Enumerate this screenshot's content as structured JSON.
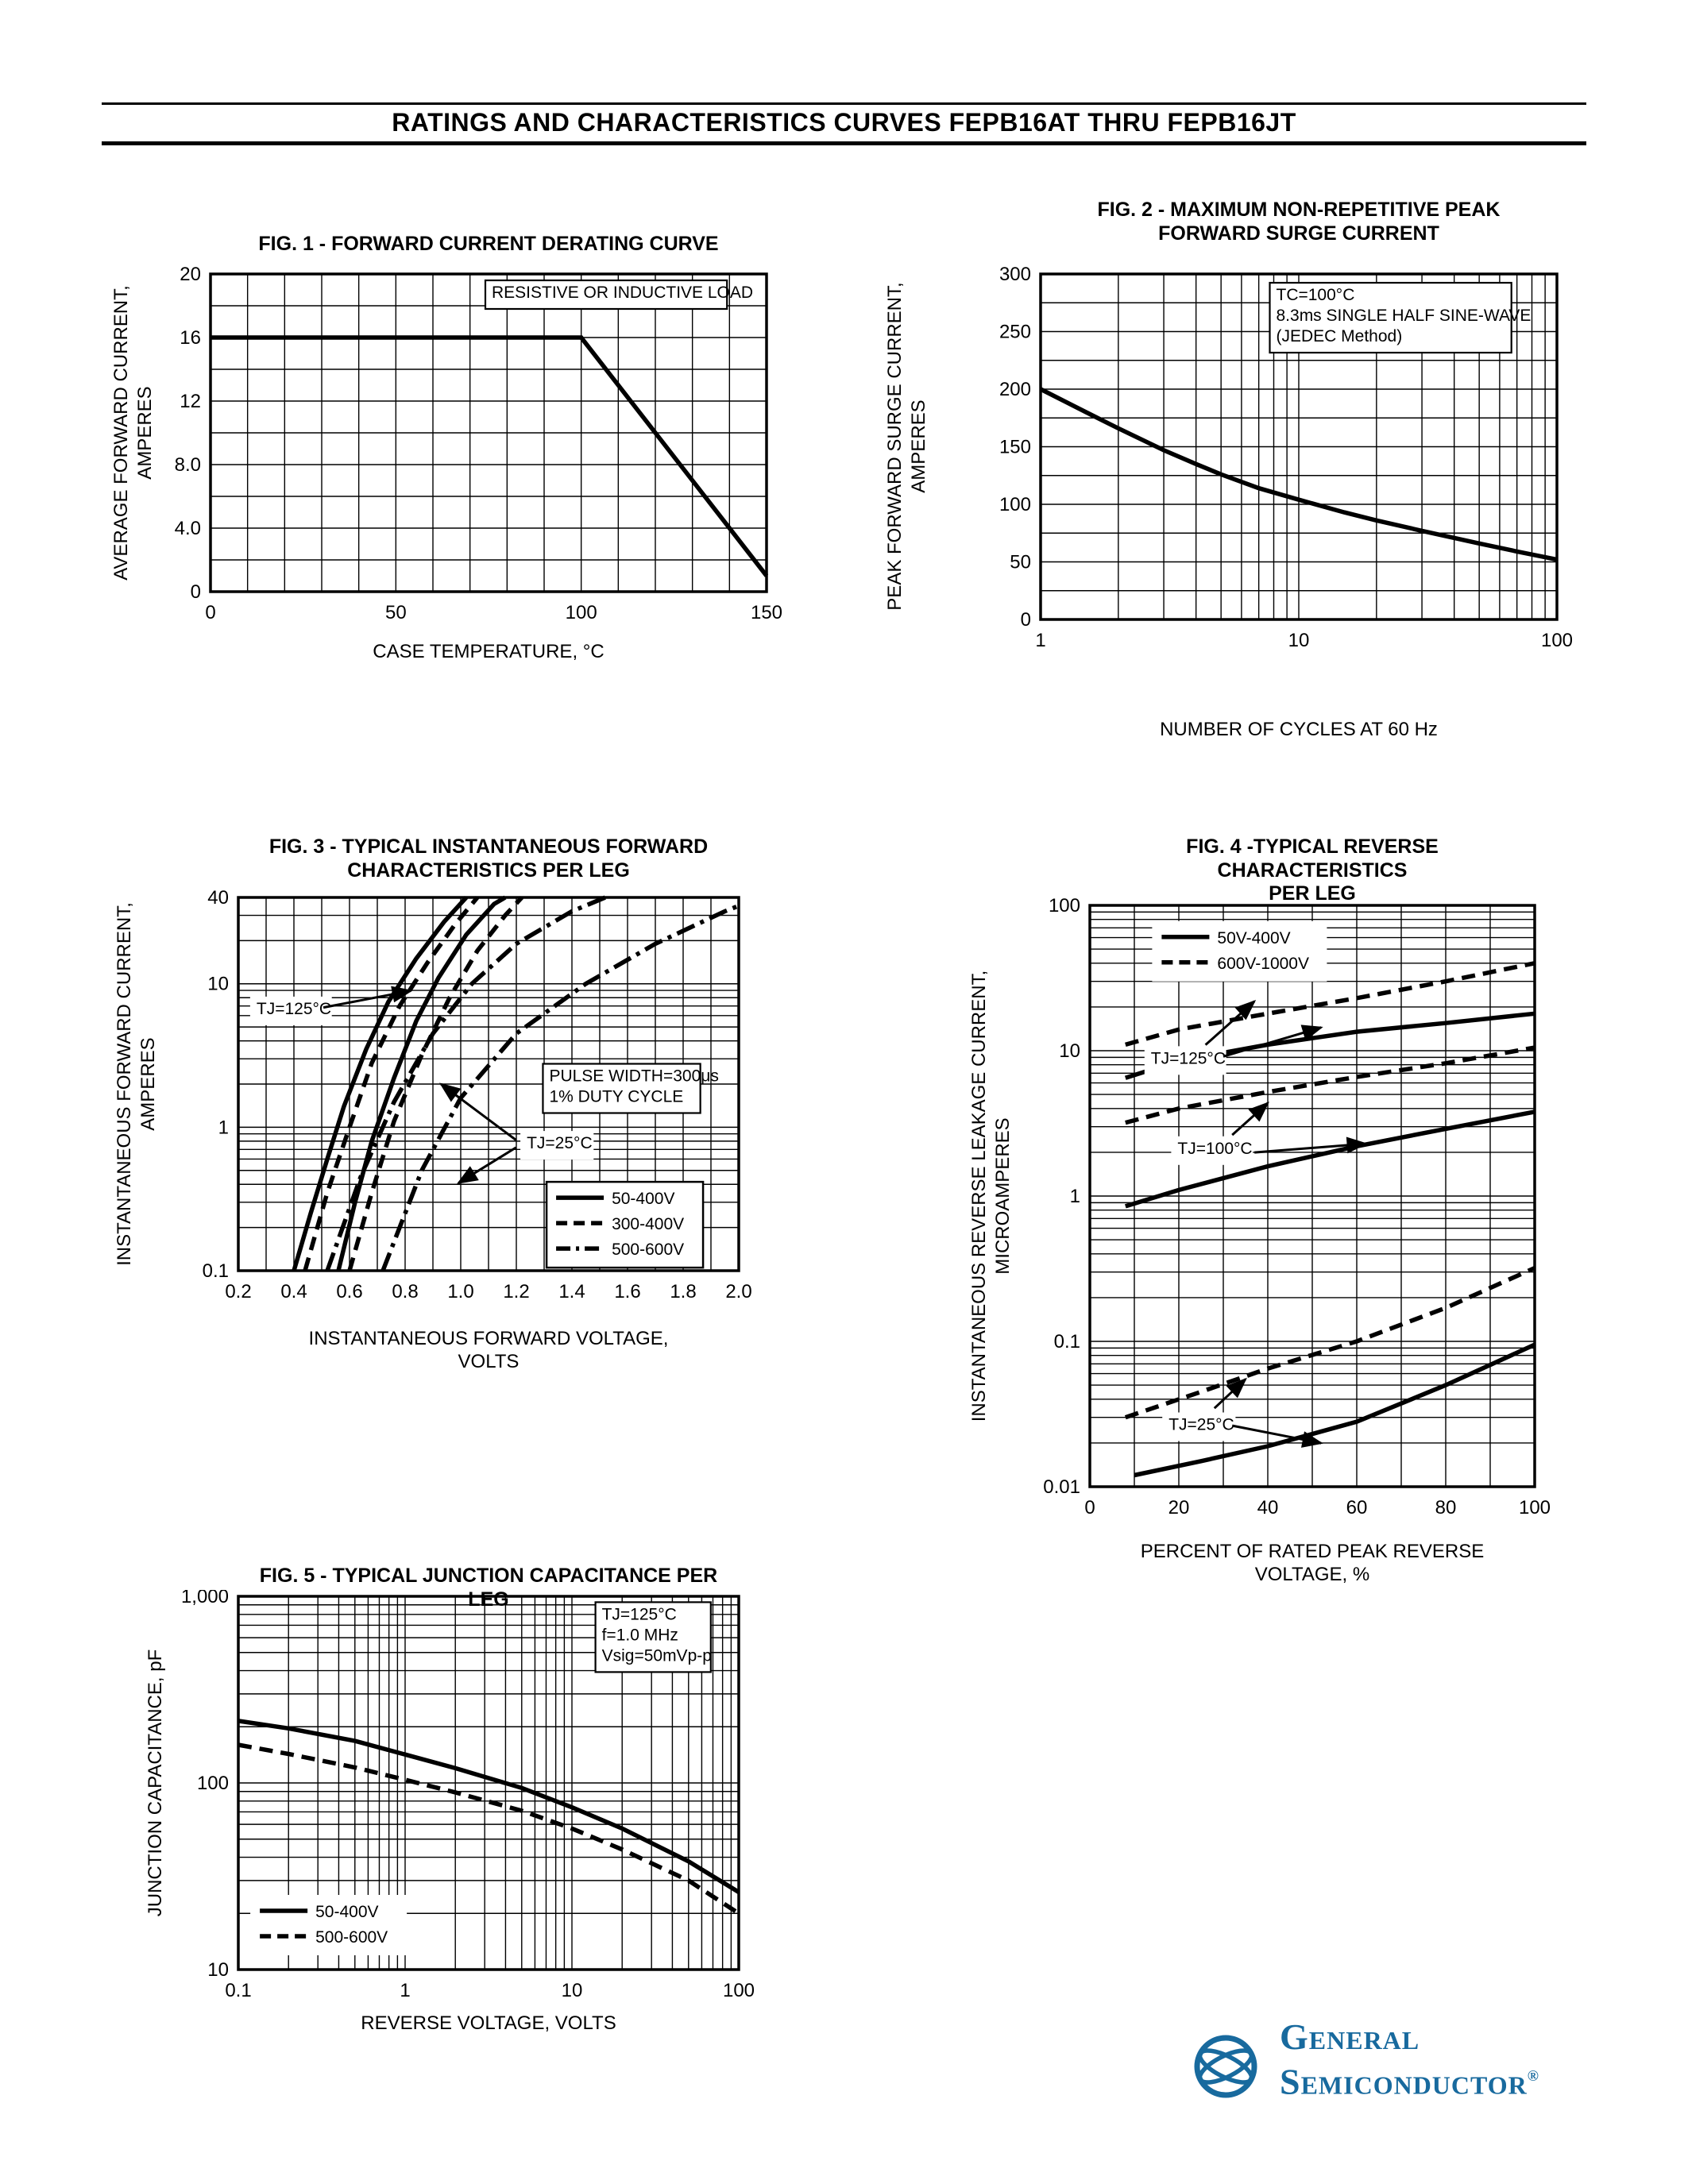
{
  "page": {
    "title": "RATINGS AND CHARACTERISTICS CURVES FEPB16AT THRU FEPB16JT"
  },
  "logo": {
    "line1": "General",
    "line2": "Semiconductor",
    "registered": "®",
    "color": "#186a9e"
  },
  "chart_data": [
    {
      "id": "fig1",
      "type": "line",
      "title": "FIG. 1 - FORWARD CURRENT DERATING CURVE",
      "xlabel": "CASE TEMPERATURE, °C",
      "ylabel": "AVERAGE FORWARD CURRENT,\nAMPERES",
      "x": {
        "type": "linear",
        "min": 0,
        "max": 150,
        "minor": 10,
        "ticks": [
          [
            0,
            "0"
          ],
          [
            50,
            "50"
          ],
          [
            100,
            "100"
          ],
          [
            150,
            "150"
          ]
        ]
      },
      "y": {
        "type": "linear",
        "min": 0,
        "max": 20,
        "minor": 2,
        "ticks": [
          [
            0,
            "0"
          ],
          [
            4,
            "4.0"
          ],
          [
            8,
            "8.0"
          ],
          [
            12,
            "12"
          ],
          [
            16,
            "16"
          ],
          [
            20,
            "20"
          ]
        ]
      },
      "series": [
        {
          "name": "derating-curve",
          "style": "solid",
          "points": [
            [
              0,
              16
            ],
            [
              100,
              16
            ],
            [
              150,
              1
            ]
          ]
        }
      ],
      "annotations": [
        {
          "lines": [
            "RESISTIVE OR INDUCTIVE LOAD"
          ],
          "fx": 0.5,
          "fy": 0.025,
          "boxed": true
        }
      ]
    },
    {
      "id": "fig2",
      "type": "line",
      "title": "FIG. 2 - MAXIMUM NON-REPETITIVE PEAK\nFORWARD SURGE CURRENT",
      "xlabel": "NUMBER OF CYCLES AT 60 Hz",
      "ylabel": "PEAK FORWARD SURGE CURRENT,\nAMPERES",
      "x": {
        "type": "log",
        "min": 1,
        "max": 100,
        "ticks": [
          [
            1,
            "1"
          ],
          [
            10,
            "10"
          ],
          [
            100,
            "100"
          ]
        ]
      },
      "y": {
        "type": "linear",
        "min": 0,
        "max": 300,
        "minor": 25,
        "ticks": [
          [
            0,
            "0"
          ],
          [
            50,
            "50"
          ],
          [
            100,
            "100"
          ],
          [
            150,
            "150"
          ],
          [
            200,
            "200"
          ],
          [
            250,
            "250"
          ],
          [
            300,
            "300"
          ]
        ]
      },
      "series": [
        {
          "name": "surge-current",
          "style": "solid",
          "points": [
            [
              1,
              200
            ],
            [
              1.5,
              180
            ],
            [
              2,
              166
            ],
            [
              3,
              147
            ],
            [
              4,
              135
            ],
            [
              5,
              126
            ],
            [
              7,
              114
            ],
            [
              10,
              104
            ],
            [
              15,
              93
            ],
            [
              20,
              86
            ],
            [
              30,
              77
            ],
            [
              50,
              66
            ],
            [
              70,
              59
            ],
            [
              100,
              52
            ]
          ]
        }
      ],
      "annotations": [
        {
          "lines": [
            "TC=100°C",
            "8.3ms SINGLE HALF SINE-WAVE",
            "(JEDEC Method)"
          ],
          "fx": 0.45,
          "fy": 0.03,
          "boxed": true
        }
      ]
    },
    {
      "id": "fig3",
      "type": "line",
      "title": "FIG. 3 - TYPICAL INSTANTANEOUS FORWARD\nCHARACTERISTICS PER LEG",
      "xlabel": "INSTANTANEOUS FORWARD VOLTAGE,\nVOLTS",
      "ylabel": "INSTANTANEOUS FORWARD CURRENT,\nAMPERES",
      "x": {
        "type": "linear",
        "min": 0.2,
        "max": 2.0,
        "minor": 0.1,
        "ticks": [
          [
            0.2,
            "0.2"
          ],
          [
            0.4,
            "0.4"
          ],
          [
            0.6,
            "0.6"
          ],
          [
            0.8,
            "0.8"
          ],
          [
            1.0,
            "1.0"
          ],
          [
            1.2,
            "1.2"
          ],
          [
            1.4,
            "1.4"
          ],
          [
            1.6,
            "1.6"
          ],
          [
            1.8,
            "1.8"
          ],
          [
            2.0,
            "2.0"
          ]
        ]
      },
      "y": {
        "type": "log",
        "min": 0.1,
        "max": 40,
        "ticks": [
          [
            0.1,
            "0.1"
          ],
          [
            1,
            "1"
          ],
          [
            10,
            "10"
          ],
          [
            40,
            "40"
          ]
        ]
      },
      "series": [
        {
          "name": "50-400V TJ=125C",
          "style": "solid",
          "points": [
            [
              0.4,
              0.1
            ],
            [
              0.46,
              0.25
            ],
            [
              0.52,
              0.6
            ],
            [
              0.58,
              1.4
            ],
            [
              0.66,
              3.5
            ],
            [
              0.74,
              7.5
            ],
            [
              0.84,
              15
            ],
            [
              0.94,
              27
            ],
            [
              1.02,
              40
            ]
          ]
        },
        {
          "name": "50-400V TJ=25C",
          "style": "solid",
          "points": [
            [
              0.56,
              0.1
            ],
            [
              0.62,
              0.3
            ],
            [
              0.68,
              0.8
            ],
            [
              0.76,
              2.2
            ],
            [
              0.84,
              5.5
            ],
            [
              0.92,
              11
            ],
            [
              1.02,
              22
            ],
            [
              1.12,
              36
            ],
            [
              1.16,
              40
            ]
          ]
        },
        {
          "name": "300-400V TJ=125C",
          "style": "dashed",
          "points": [
            [
              0.44,
              0.1
            ],
            [
              0.52,
              0.35
            ],
            [
              0.6,
              1.0
            ],
            [
              0.68,
              2.8
            ],
            [
              0.78,
              7
            ],
            [
              0.88,
              14
            ],
            [
              0.98,
              26
            ],
            [
              1.06,
              40
            ]
          ]
        },
        {
          "name": "300-400V TJ=25C",
          "style": "dashed",
          "points": [
            [
              0.6,
              0.1
            ],
            [
              0.68,
              0.35
            ],
            [
              0.76,
              1.1
            ],
            [
              0.86,
              3.2
            ],
            [
              0.96,
              8
            ],
            [
              1.06,
              17
            ],
            [
              1.16,
              30
            ],
            [
              1.22,
              40
            ]
          ]
        },
        {
          "name": "500-600V TJ=125C",
          "style": "dashdot",
          "points": [
            [
              0.52,
              0.1
            ],
            [
              0.64,
              0.45
            ],
            [
              0.76,
              1.5
            ],
            [
              0.9,
              4.5
            ],
            [
              1.04,
              10
            ],
            [
              1.2,
              19
            ],
            [
              1.4,
              32
            ],
            [
              1.52,
              40
            ]
          ]
        },
        {
          "name": "500-600V TJ=25C",
          "style": "dashdot",
          "points": [
            [
              0.72,
              0.1
            ],
            [
              0.86,
              0.5
            ],
            [
              1.0,
              1.6
            ],
            [
              1.2,
              4.5
            ],
            [
              1.45,
              10
            ],
            [
              1.7,
              19
            ],
            [
              1.95,
              32
            ],
            [
              2.0,
              35
            ]
          ]
        }
      ],
      "legend": {
        "fx": 0.616,
        "fy": 0.762,
        "boxed": true,
        "items": [
          {
            "style": "solid",
            "label": "50-400V"
          },
          {
            "style": "dashed",
            "label": "300-400V"
          },
          {
            "style": "dashdot",
            "label": "500-600V"
          }
        ]
      },
      "annotations": [
        {
          "lines": [
            "TJ=125°C"
          ],
          "fx": 0.03,
          "fy": 0.27,
          "boxed": false,
          "arrows": [
            [
              0.17,
              0.295,
              0.345,
              0.25
            ]
          ]
        },
        {
          "lines": [
            "PULSE WIDTH=300μs",
            "1% DUTY CYCLE"
          ],
          "fx": 0.615,
          "fy": 0.45,
          "boxed": true
        },
        {
          "lines": [
            "TJ=25°C"
          ],
          "fx": 0.57,
          "fy": 0.63,
          "boxed": false,
          "arrows": [
            [
              0.555,
              0.65,
              0.405,
              0.5
            ],
            [
              0.555,
              0.67,
              0.44,
              0.765
            ]
          ]
        }
      ]
    },
    {
      "id": "fig4",
      "type": "line",
      "title": "FIG. 4 -TYPICAL REVERSE CHARACTERISTICS\nPER LEG",
      "xlabel": "PERCENT OF RATED PEAK REVERSE\nVOLTAGE, %",
      "ylabel": "INSTANTANEOUS REVERSE LEAKAGE  CURRENT,\nMICROAMPERES",
      "x": {
        "type": "linear",
        "min": 0,
        "max": 100,
        "minor": 10,
        "ticks": [
          [
            0,
            "0"
          ],
          [
            20,
            "20"
          ],
          [
            40,
            "40"
          ],
          [
            60,
            "60"
          ],
          [
            80,
            "80"
          ],
          [
            100,
            "100"
          ]
        ]
      },
      "y": {
        "type": "log",
        "min": 0.01,
        "max": 100,
        "ticks": [
          [
            0.01,
            "0.01"
          ],
          [
            0.1,
            "0.1"
          ],
          [
            1,
            "1"
          ],
          [
            10,
            "10"
          ],
          [
            100,
            "100"
          ]
        ]
      },
      "series": [
        {
          "name": "50V-400V TJ=125C",
          "style": "solid",
          "points": [
            [
              8,
              6.5
            ],
            [
              20,
              8.5
            ],
            [
              40,
              11
            ],
            [
              60,
              13.5
            ],
            [
              80,
              15.5
            ],
            [
              100,
              18
            ]
          ]
        },
        {
          "name": "600V-1000V TJ=125C",
          "style": "dashed",
          "points": [
            [
              8,
              11
            ],
            [
              20,
              14
            ],
            [
              40,
              18
            ],
            [
              60,
              23
            ],
            [
              80,
              30
            ],
            [
              100,
              40
            ]
          ]
        },
        {
          "name": "50V-400V TJ=100C",
          "style": "solid",
          "points": [
            [
              8,
              0.85
            ],
            [
              20,
              1.1
            ],
            [
              40,
              1.6
            ],
            [
              60,
              2.2
            ],
            [
              80,
              2.9
            ],
            [
              100,
              3.8
            ]
          ]
        },
        {
          "name": "600V-1000V TJ=100C",
          "style": "dashed",
          "points": [
            [
              8,
              3.2
            ],
            [
              20,
              4.0
            ],
            [
              40,
              5.2
            ],
            [
              60,
              6.6
            ],
            [
              80,
              8.2
            ],
            [
              100,
              10.5
            ]
          ]
        },
        {
          "name": "50V-400V TJ=25C",
          "style": "solid",
          "points": [
            [
              10,
              0.012
            ],
            [
              25,
              0.015
            ],
            [
              40,
              0.019
            ],
            [
              60,
              0.028
            ],
            [
              80,
              0.05
            ],
            [
              100,
              0.095
            ]
          ]
        },
        {
          "name": "600V-1000V TJ=25C",
          "style": "dashed",
          "points": [
            [
              8,
              0.03
            ],
            [
              25,
              0.045
            ],
            [
              40,
              0.065
            ],
            [
              60,
              0.1
            ],
            [
              80,
              0.17
            ],
            [
              100,
              0.32
            ]
          ]
        }
      ],
      "legend": {
        "fx": 0.14,
        "fy": 0.027,
        "boxed": false,
        "items": [
          {
            "style": "solid",
            "label": "50V-400V"
          },
          {
            "style": "dashed",
            "label": "600V-1000V"
          }
        ]
      },
      "annotations": [
        {
          "lines": [
            "TJ=125°C"
          ],
          "fx": 0.13,
          "fy": 0.245,
          "boxed": false,
          "arrows": [
            [
              0.3,
              0.26,
              0.52,
              0.21
            ],
            [
              0.26,
              0.24,
              0.37,
              0.165
            ]
          ]
        },
        {
          "lines": [
            "TJ=100°C"
          ],
          "fx": 0.19,
          "fy": 0.4,
          "boxed": false,
          "arrows": [
            [
              0.37,
              0.425,
              0.62,
              0.41
            ],
            [
              0.32,
              0.395,
              0.4,
              0.34
            ]
          ]
        },
        {
          "lines": [
            "TJ=25°C"
          ],
          "fx": 0.17,
          "fy": 0.875,
          "boxed": false,
          "arrows": [
            [
              0.32,
              0.895,
              0.52,
              0.925
            ],
            [
              0.28,
              0.865,
              0.35,
              0.815
            ]
          ]
        }
      ]
    },
    {
      "id": "fig5",
      "type": "line",
      "title": "FIG. 5 - TYPICAL JUNCTION CAPACITANCE PER LEG",
      "xlabel": "REVERSE VOLTAGE, VOLTS",
      "ylabel": "JUNCTION CAPACITANCE, pF",
      "x": {
        "type": "log",
        "min": 0.1,
        "max": 100,
        "ticks": [
          [
            0.1,
            "0.1"
          ],
          [
            1,
            "1"
          ],
          [
            10,
            "10"
          ],
          [
            100,
            "100"
          ]
        ]
      },
      "y": {
        "type": "log",
        "min": 10,
        "max": 1000,
        "ticks": [
          [
            10,
            "10"
          ],
          [
            100,
            "100"
          ],
          [
            1000,
            "1,000"
          ]
        ]
      },
      "series": [
        {
          "name": "50-400V",
          "style": "solid",
          "points": [
            [
              0.1,
              215
            ],
            [
              0.2,
              196
            ],
            [
              0.5,
              168
            ],
            [
              1,
              142
            ],
            [
              2,
              120
            ],
            [
              5,
              94
            ],
            [
              10,
              74
            ],
            [
              20,
              57
            ],
            [
              50,
              38
            ],
            [
              100,
              26
            ]
          ]
        },
        {
          "name": "500-600V",
          "style": "dashed",
          "points": [
            [
              0.1,
              160
            ],
            [
              0.2,
              143
            ],
            [
              0.5,
              121
            ],
            [
              1,
              104
            ],
            [
              2,
              89
            ],
            [
              5,
              71
            ],
            [
              10,
              57
            ],
            [
              20,
              44
            ],
            [
              50,
              30
            ],
            [
              100,
              20
            ]
          ]
        }
      ],
      "legend": {
        "fx": 0.024,
        "fy": 0.8,
        "boxed": false,
        "items": [
          {
            "style": "solid",
            "label": "50-400V"
          },
          {
            "style": "dashed",
            "label": "500-600V"
          }
        ]
      },
      "annotations": [
        {
          "lines": [
            "TJ=125°C",
            "f=1.0 MHz",
            "Vsig=50mVp-p"
          ],
          "fx": 0.72,
          "fy": 0.02,
          "boxed": true
        }
      ]
    }
  ]
}
